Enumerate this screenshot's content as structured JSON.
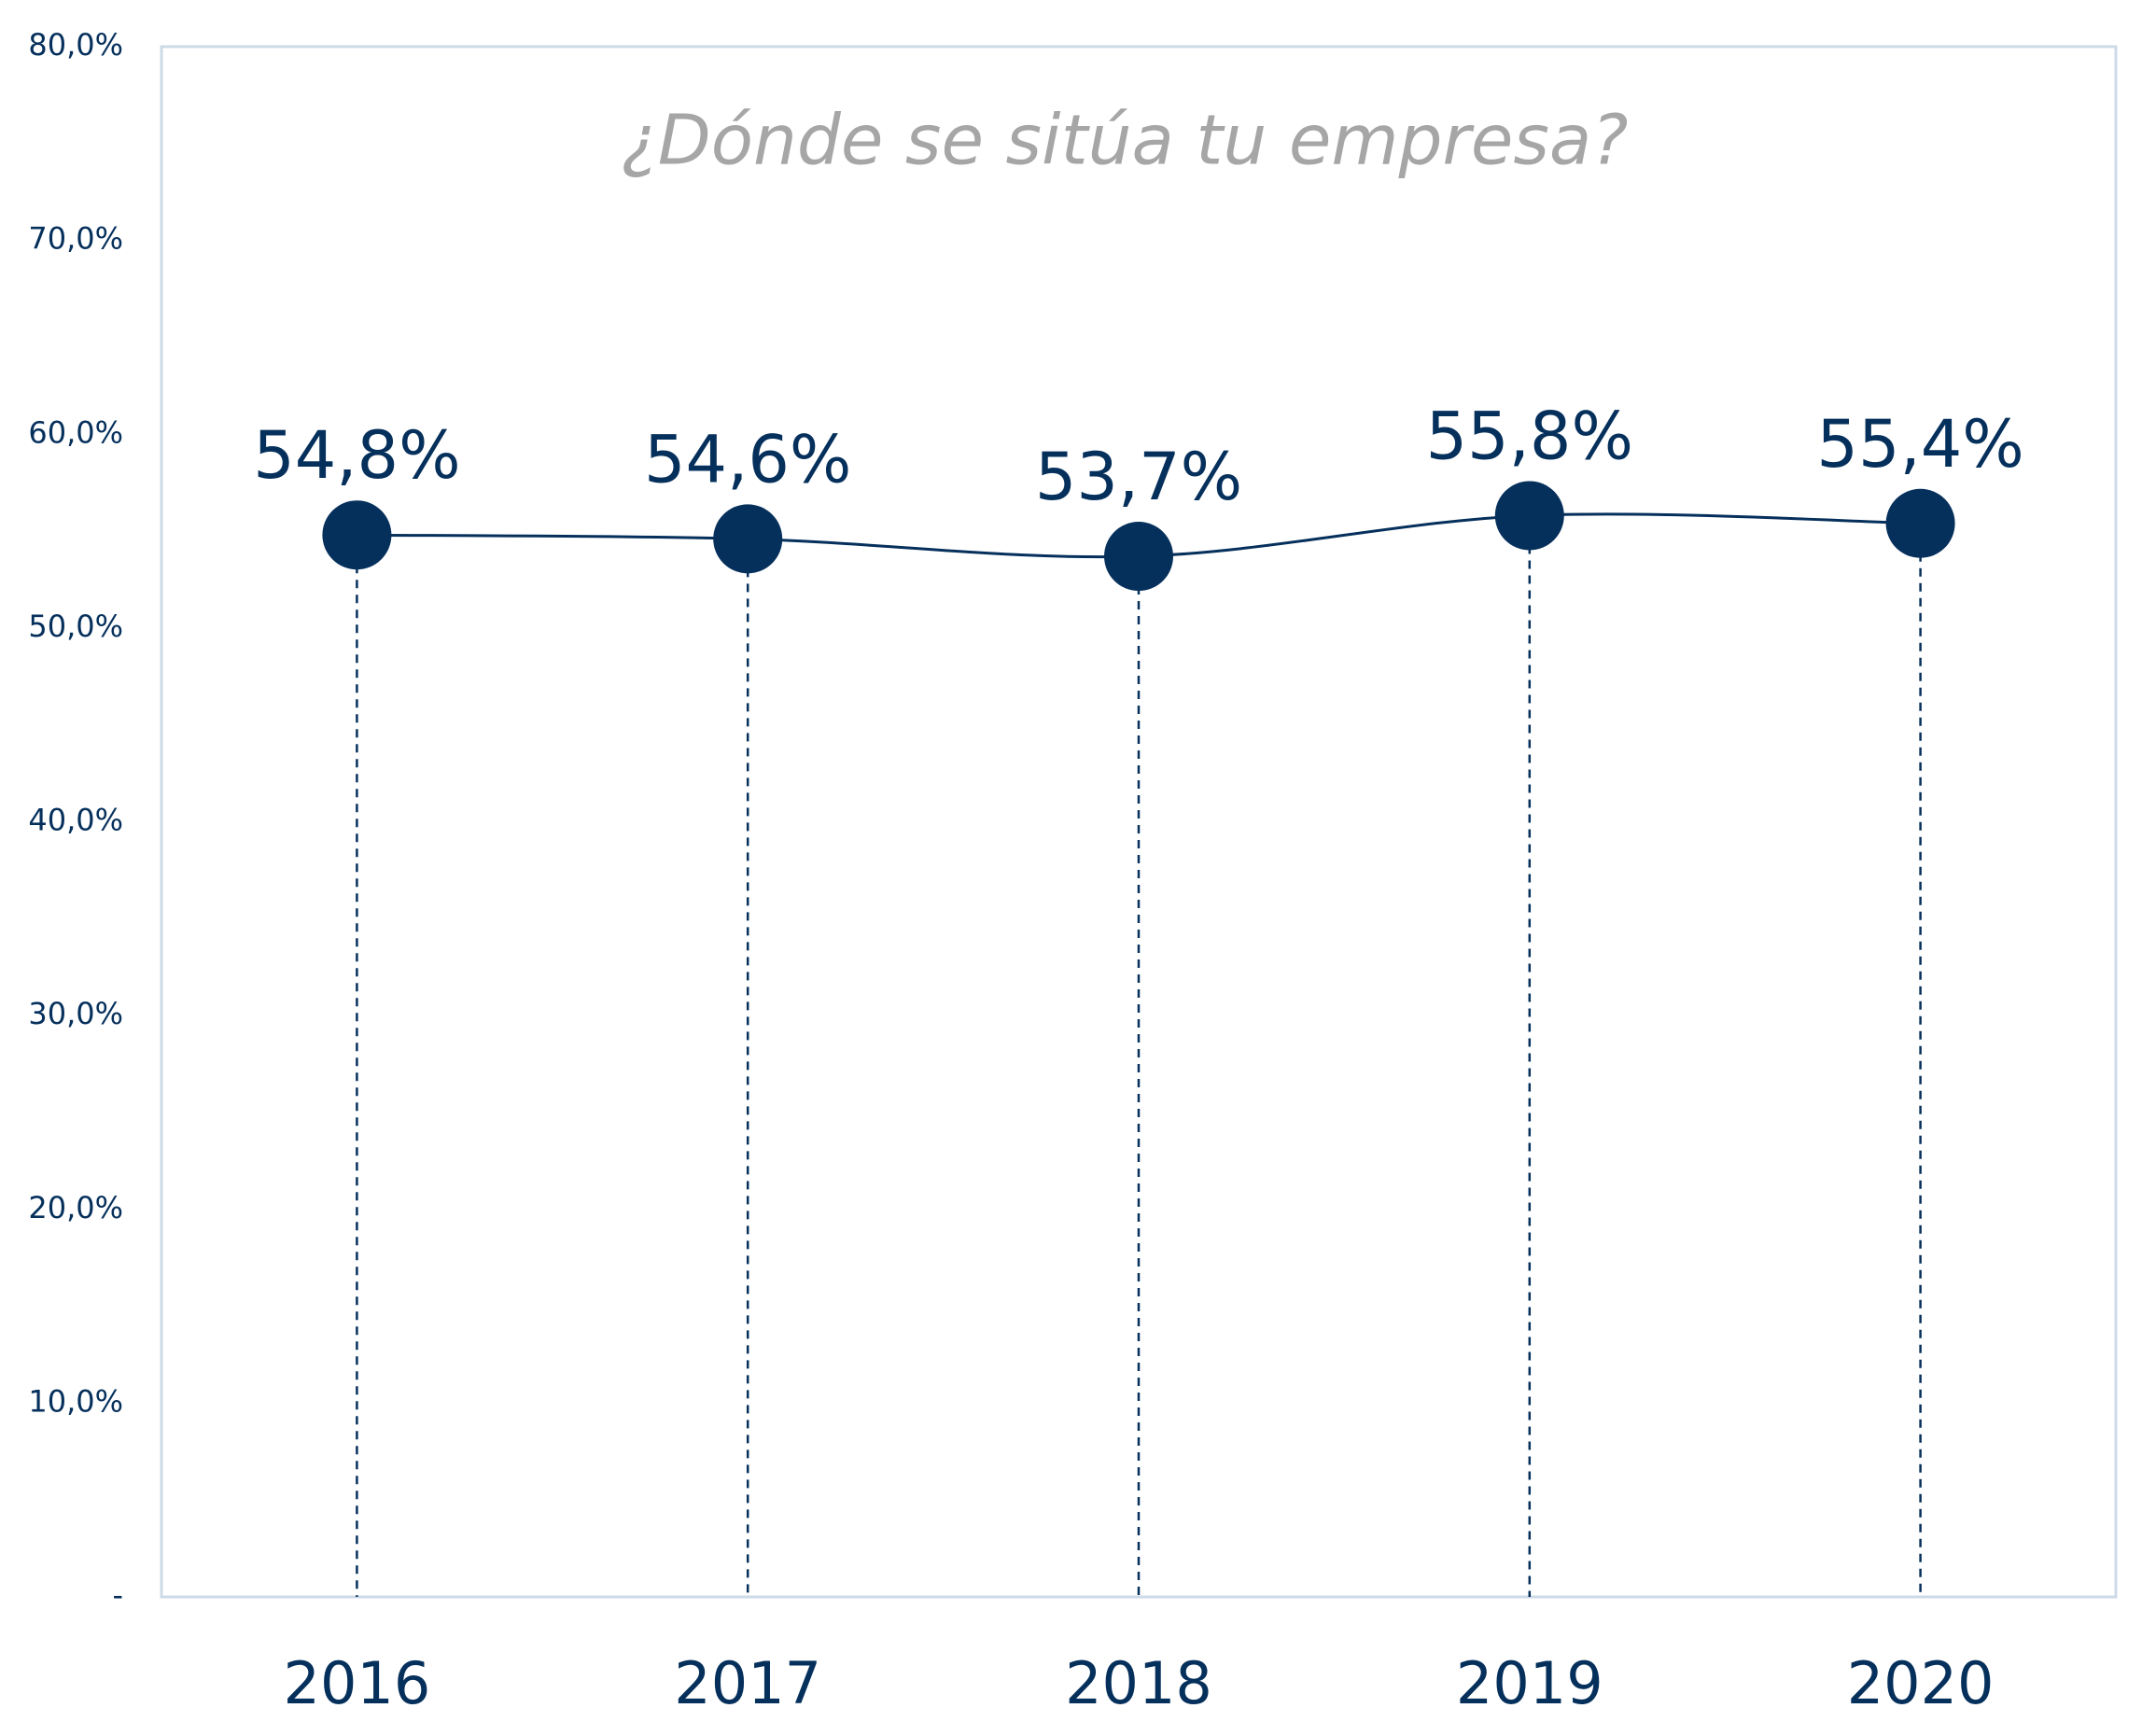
{
  "chart_data": {
    "type": "line",
    "title": "¿Dónde se sitúa tu empresa?",
    "categories": [
      "2016",
      "2017",
      "2018",
      "2019",
      "2020"
    ],
    "values": [
      54.8,
      54.6,
      53.7,
      55.8,
      55.4
    ],
    "value_labels": [
      "54,8%",
      "54,6%",
      "53,7%",
      "55,8%",
      "55,4%"
    ],
    "color": "#06305c",
    "ylim": [
      0,
      80
    ],
    "yticks": [
      {
        "value": 0,
        "label": "-"
      },
      {
        "value": 10,
        "label": "10,0%"
      },
      {
        "value": 20,
        "label": "20,0%"
      },
      {
        "value": 30,
        "label": "30,0%"
      },
      {
        "value": 40,
        "label": "40,0%"
      },
      {
        "value": 50,
        "label": "50,0%"
      },
      {
        "value": 60,
        "label": "60,0%"
      },
      {
        "value": 70,
        "label": "70,0%"
      },
      {
        "value": 80,
        "label": "80,0%"
      }
    ],
    "grid": false,
    "smooth": true,
    "drop_lines": true
  }
}
